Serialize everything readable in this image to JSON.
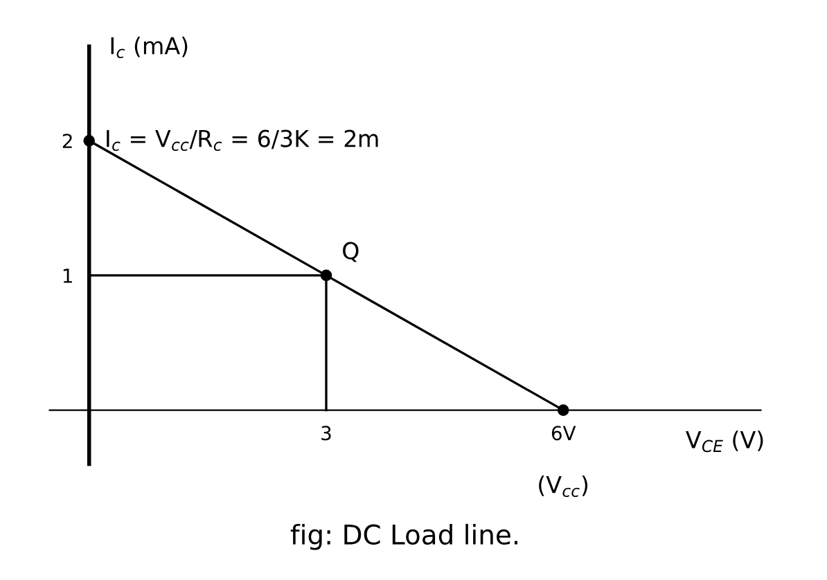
{
  "chart_data": {
    "type": "line",
    "title": "fig: DC Load line.",
    "xlabel": "V$_{CE}$ (V)",
    "ylabel": "I$_{c}$ (mA)",
    "series": [
      {
        "x": [
          0,
          3,
          6
        ],
        "values": [
          2,
          1,
          0
        ],
        "color": "#000000",
        "marker": "circle"
      },
      {
        "x": [
          0,
          3
        ],
        "values": [
          1,
          1
        ],
        "color": "#000000",
        "marker": "none"
      },
      {
        "x": [
          3,
          3
        ],
        "values": [
          1,
          0
        ],
        "color": "#000000",
        "marker": "none"
      }
    ],
    "xlim": [
      -0.5,
      8.5
    ],
    "ylim": [
      -0.4,
      2.7
    ],
    "xticks": [
      3,
      {
        "value": 6,
        "label": "6V"
      }
    ],
    "yticks": [
      1,
      2
    ],
    "annotations": [
      {
        "text": "I$_{c}$ = V$_{cc}$/R$_{c}$ = 6/3K = 2m",
        "x": 0,
        "y": 2
      },
      {
        "text": "Q",
        "x": 3,
        "y": 1
      },
      {
        "text": "(V$_{cc}$)",
        "x": 6,
        "y": 0
      }
    ],
    "grid": false,
    "legend": false,
    "line_style": "solid"
  }
}
